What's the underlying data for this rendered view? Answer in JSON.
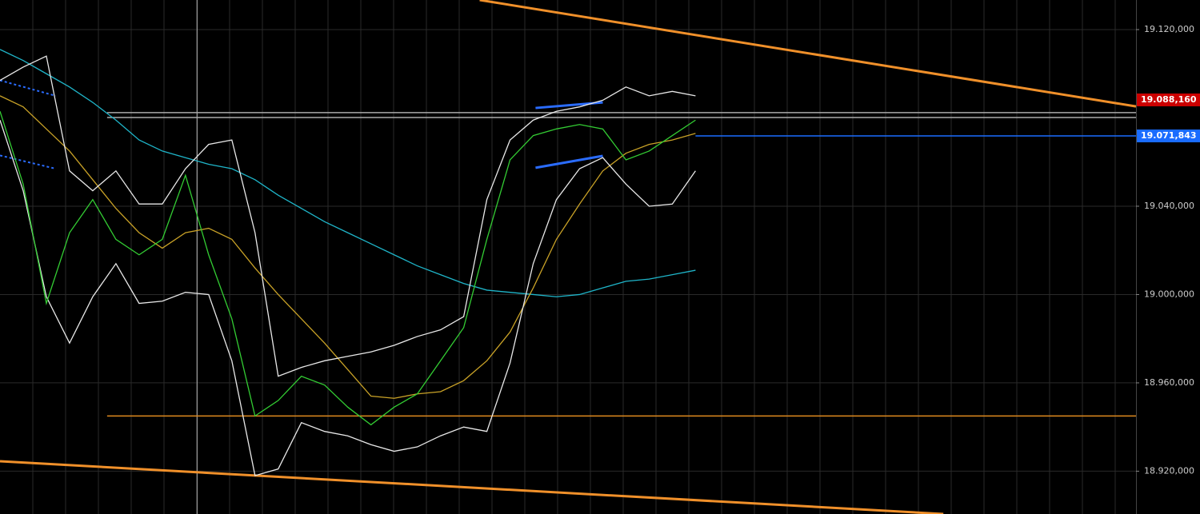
{
  "chart_data": {
    "type": "line",
    "ylim": [
      18900.6,
      19133.4
    ],
    "xlim": [
      0,
      49
    ],
    "yticks": [
      {
        "value": 18920,
        "label": "18.920,000"
      },
      {
        "value": 18960,
        "label": "18.960,000"
      },
      {
        "value": 19000,
        "label": "19.000,000"
      },
      {
        "value": 19040,
        "label": "19.040,000"
      },
      {
        "value": 19120,
        "label": "19.120,000"
      }
    ],
    "grid": true,
    "series": [
      {
        "color": "#1fb5c9",
        "values": [
          19111,
          19106,
          19100,
          19094,
          19087,
          19079,
          19070,
          19065,
          19062,
          19059,
          19057,
          19052,
          19045,
          19039,
          19033,
          19028,
          19023,
          19018,
          19013,
          19009,
          19005,
          19002,
          19001,
          19000,
          18999,
          19000,
          19003,
          19006,
          19007,
          19009,
          19011
        ]
      },
      {
        "color": "#c9a227",
        "values": [
          19090,
          19085,
          19075,
          19065,
          19052,
          19039,
          19028,
          19021,
          19028,
          19030,
          19025,
          19012,
          19000,
          18989,
          18978,
          18966,
          18954,
          18953,
          18955,
          18956,
          18961,
          18970,
          18983,
          19003,
          19025,
          19041,
          19056,
          19064,
          19068,
          19070,
          19073
        ]
      },
      {
        "color": "#e8e8e8",
        "values": [
          19097,
          19103,
          19108,
          19056,
          19047,
          19056,
          19041,
          19041,
          19057,
          19068,
          19070,
          19028,
          18963,
          18967,
          18970,
          18972,
          18974,
          18977,
          18981,
          18984,
          18990,
          19043,
          19070,
          19079,
          19083,
          19085,
          19088,
          19094,
          19090,
          19092,
          19090
        ]
      },
      {
        "color": "#e8e8e8",
        "values": [
          19079,
          19047,
          18999,
          18978,
          18999,
          19014,
          18996,
          18997,
          19001,
          19000,
          18970,
          18918,
          18921,
          18942,
          18938,
          18936,
          18932,
          18929,
          18931,
          18936,
          18940,
          18938,
          18969,
          19014,
          19043,
          19057,
          19062,
          19050,
          19040,
          19041,
          19056
        ]
      },
      {
        "color": "#33cc33",
        "values": [
          19083,
          19050,
          18996,
          19028,
          19043,
          19025,
          19018,
          19025,
          19054,
          19018,
          18989,
          18945,
          18952,
          18963,
          18959,
          18949,
          18941,
          18949,
          18955,
          18970,
          18985,
          19025,
          19061,
          19072,
          19075,
          19077,
          19075,
          19061,
          19065,
          19072,
          19079
        ]
      }
    ],
    "hlines": [
      {
        "value": 18945,
        "color": "#e08a1e",
        "from": 4.62
      },
      {
        "value": 19082.4,
        "color": "#aaaaaa",
        "from": 4.62
      },
      {
        "value": 19080.2,
        "color": "#aaaaaa",
        "from": 4.62
      },
      {
        "value": 19071.843,
        "color": "#1a6cff",
        "from": 30
      }
    ],
    "trendlines": [
      {
        "color": "#f0902a",
        "x": [
          20.69,
          49
        ],
        "y": [
          19133.4,
          19085.2
        ]
      },
      {
        "color": "#f0902a",
        "x": [
          0,
          40.69
        ],
        "y": [
          18924.5,
          18900.6
        ]
      },
      {
        "color": "#2a6cff",
        "x": [
          23.1,
          26.0
        ],
        "y": [
          19084.5,
          19087
        ]
      },
      {
        "color": "#2a6cff",
        "x": [
          23.1,
          26.0
        ],
        "y": [
          19057.4,
          19062.8
        ]
      },
      {
        "color": "#2a6cff",
        "x": [
          0,
          2.4
        ],
        "y": [
          19097,
          19090
        ],
        "dashed": true
      },
      {
        "color": "#2a6cff",
        "x": [
          0,
          2.4
        ],
        "y": [
          19063,
          19057
        ],
        "dashed": true
      }
    ],
    "cursor_x": 8.5,
    "price_labels": [
      {
        "value": 19088.16,
        "label": "19.088,160",
        "color": "#cc0000"
      },
      {
        "value": 19071.843,
        "label": "19.071,843",
        "color": "#1a6cff"
      }
    ]
  }
}
